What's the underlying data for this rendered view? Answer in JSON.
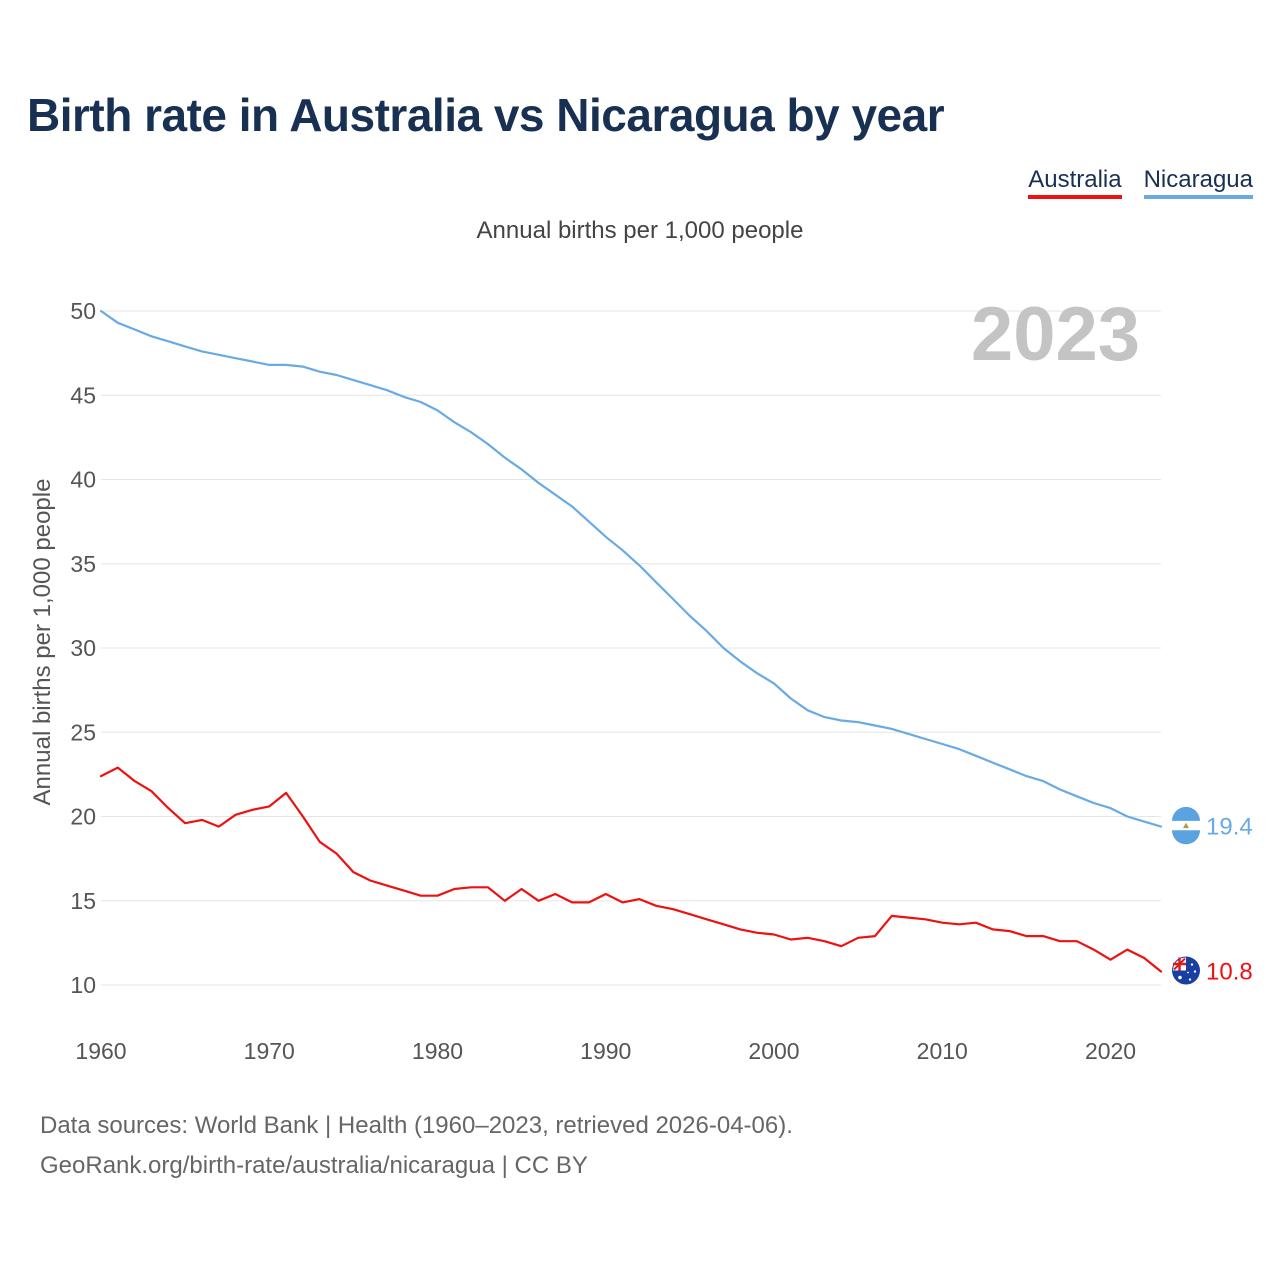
{
  "header": {
    "title": "Birth rate in Australia vs Nicaragua by year",
    "subtitle": "Annual births per 1,000 people"
  },
  "legend": [
    {
      "label": "Australia",
      "color": "#ee1111"
    },
    {
      "label": "Nicaragua",
      "color": "#6aaae4"
    }
  ],
  "footer": {
    "line1": "Data sources: World Bank | Health (1960–2023, retrieved 2026-04-06).",
    "line2": "GeoRank.org/birth-rate/australia/nicaragua | CC BY"
  },
  "chart_data": {
    "type": "line",
    "title": "Birth rate in Australia vs Nicaragua by year",
    "ylabel": "Annual births per 1,000 people",
    "xlabel": "",
    "year_label": "2023",
    "xlim": [
      1960,
      2023
    ],
    "ylim": [
      10,
      50
    ],
    "x_ticks": [
      1960,
      1970,
      1980,
      1990,
      2000,
      2010,
      2020
    ],
    "y_ticks": [
      10,
      15,
      20,
      25,
      30,
      35,
      40,
      45,
      50
    ],
    "grid": true,
    "x": [
      1960,
      1961,
      1962,
      1963,
      1964,
      1965,
      1966,
      1967,
      1968,
      1969,
      1970,
      1971,
      1972,
      1973,
      1974,
      1975,
      1976,
      1977,
      1978,
      1979,
      1980,
      1981,
      1982,
      1983,
      1984,
      1985,
      1986,
      1987,
      1988,
      1989,
      1990,
      1991,
      1992,
      1993,
      1994,
      1995,
      1996,
      1997,
      1998,
      1999,
      2000,
      2001,
      2002,
      2003,
      2004,
      2005,
      2006,
      2007,
      2008,
      2009,
      2010,
      2011,
      2012,
      2013,
      2014,
      2015,
      2016,
      2017,
      2018,
      2019,
      2020,
      2021,
      2022,
      2023
    ],
    "series": [
      {
        "name": "Nicaragua",
        "color": "#6aaae4",
        "end_label": "19.4",
        "values": [
          50.0,
          49.3,
          48.9,
          48.5,
          48.2,
          47.9,
          47.6,
          47.4,
          47.2,
          47.0,
          46.8,
          46.8,
          46.7,
          46.4,
          46.2,
          45.9,
          45.6,
          45.3,
          44.9,
          44.6,
          44.1,
          43.4,
          42.8,
          42.1,
          41.3,
          40.6,
          39.8,
          39.1,
          38.4,
          37.5,
          36.6,
          35.8,
          34.9,
          33.9,
          32.9,
          31.9,
          31.0,
          30.0,
          29.2,
          28.5,
          27.9,
          27.0,
          26.3,
          25.9,
          25.7,
          25.6,
          25.4,
          25.2,
          24.9,
          24.6,
          24.3,
          24.0,
          23.6,
          23.2,
          22.8,
          22.4,
          22.1,
          21.6,
          21.2,
          20.8,
          20.5,
          20.0,
          19.7,
          19.4
        ]
      },
      {
        "name": "Australia",
        "color": "#ee1111",
        "end_label": "10.8",
        "values": [
          22.4,
          22.9,
          22.1,
          21.5,
          20.5,
          19.6,
          19.8,
          19.4,
          20.1,
          20.4,
          20.6,
          21.4,
          20.0,
          18.5,
          17.8,
          16.7,
          16.2,
          15.9,
          15.6,
          15.3,
          15.3,
          15.7,
          15.8,
          15.8,
          15.0,
          15.7,
          15.0,
          15.4,
          14.9,
          14.9,
          15.4,
          14.9,
          15.1,
          14.7,
          14.5,
          14.2,
          13.9,
          13.6,
          13.3,
          13.1,
          13.0,
          12.7,
          12.8,
          12.6,
          12.3,
          12.8,
          12.9,
          14.1,
          14.0,
          13.9,
          13.7,
          13.6,
          13.7,
          13.3,
          13.2,
          12.9,
          12.9,
          12.6,
          12.6,
          12.1,
          11.5,
          12.1,
          11.6,
          10.8
        ]
      }
    ]
  }
}
